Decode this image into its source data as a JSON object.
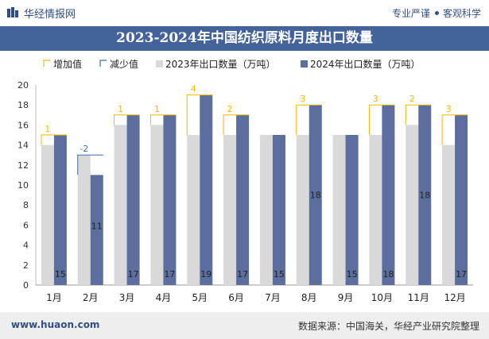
{
  "header": {
    "brand": "华经情报网",
    "tag_left": "专业严谨",
    "tag_right": "客观科学"
  },
  "chart_data": {
    "type": "bar",
    "title": "2023-2024年中国纺织原料月度出口数量",
    "categories": [
      "1月",
      "2月",
      "3月",
      "4月",
      "5月",
      "6月",
      "7月",
      "8月",
      "9月",
      "10月",
      "11月",
      "12月"
    ],
    "series": [
      {
        "name": "2023年出口数量（万吨）",
        "values": [
          14,
          13,
          16,
          16,
          15,
          15,
          15,
          15,
          15,
          15,
          16,
          14
        ]
      },
      {
        "name": "2024年出口数量（万吨）",
        "values": [
          15,
          11,
          17,
          17,
          19,
          17,
          15,
          18,
          15,
          18,
          18,
          17
        ]
      }
    ],
    "change": {
      "increase_label": "增加值",
      "decrease_label": "减少值",
      "labels": [
        "1",
        "-2",
        "1",
        "1",
        "4",
        "2",
        "",
        "3",
        "",
        "3",
        "2",
        "3"
      ]
    },
    "ylim": [
      0,
      20
    ],
    "yticks": [
      0,
      2,
      4,
      6,
      8,
      10,
      12,
      14,
      16,
      18,
      20
    ],
    "grid": false,
    "legend_position": "top",
    "colors": {
      "s2023": "#d9d9d9",
      "s2024": "#5b6e9e",
      "increase": "#f5b800",
      "decrease": "#3a6fb0"
    }
  },
  "footer": {
    "site": "www.huaon.com",
    "source": "数据来源：中国海关，华经产业研究院整理"
  }
}
